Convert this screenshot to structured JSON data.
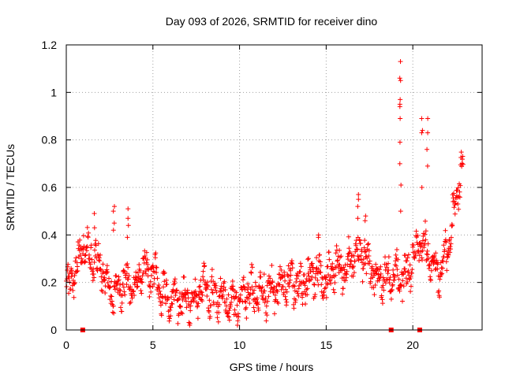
{
  "chart_data": {
    "type": "scatter",
    "title": "Day 093 of 2026, SRMTID for receiver dino",
    "xlabel": "GPS time / hours",
    "ylabel": "SRMTID / TECUs",
    "xlim": [
      0,
      24
    ],
    "ylim": [
      0,
      1.2
    ],
    "xticks": [
      0,
      5,
      10,
      15,
      20
    ],
    "xtick_labels": [
      "0",
      "5",
      "10",
      "15",
      "20"
    ],
    "yticks": [
      0,
      0.2,
      0.4,
      0.6,
      0.8,
      1.0,
      1.2
    ],
    "ytick_labels": [
      "0",
      "0.2",
      "0.4",
      "0.6",
      "0.8",
      "1",
      "1.2"
    ],
    "grid": true,
    "marker": "+",
    "color": "#ff0000",
    "baseline_markers": [
      {
        "x": 0.95,
        "y": 0
      },
      {
        "x": 18.75,
        "y": 0
      },
      {
        "x": 20.4,
        "y": 0
      }
    ],
    "trend": [
      [
        0.0,
        0.16
      ],
      [
        0.5,
        0.25
      ],
      [
        1.0,
        0.36
      ],
      [
        1.5,
        0.3
      ],
      [
        2.0,
        0.26
      ],
      [
        2.5,
        0.16
      ],
      [
        3.0,
        0.18
      ],
      [
        3.5,
        0.2
      ],
      [
        4.0,
        0.19
      ],
      [
        4.5,
        0.27
      ],
      [
        5.0,
        0.23
      ],
      [
        5.5,
        0.17
      ],
      [
        6.0,
        0.14
      ],
      [
        6.5,
        0.13
      ],
      [
        7.0,
        0.12
      ],
      [
        7.5,
        0.15
      ],
      [
        8.0,
        0.18
      ],
      [
        8.5,
        0.14
      ],
      [
        9.0,
        0.15
      ],
      [
        9.5,
        0.11
      ],
      [
        10.0,
        0.12
      ],
      [
        10.5,
        0.16
      ],
      [
        11.0,
        0.16
      ],
      [
        11.5,
        0.16
      ],
      [
        12.0,
        0.17
      ],
      [
        12.5,
        0.19
      ],
      [
        13.0,
        0.2
      ],
      [
        13.5,
        0.19
      ],
      [
        14.0,
        0.21
      ],
      [
        14.5,
        0.24
      ],
      [
        15.0,
        0.2
      ],
      [
        15.5,
        0.26
      ],
      [
        16.0,
        0.26
      ],
      [
        16.5,
        0.3
      ],
      [
        17.0,
        0.34
      ],
      [
        17.5,
        0.26
      ],
      [
        18.0,
        0.21
      ],
      [
        18.5,
        0.22
      ],
      [
        19.0,
        0.25
      ],
      [
        19.5,
        0.22
      ],
      [
        20.0,
        0.3
      ],
      [
        20.5,
        0.38
      ],
      [
        21.0,
        0.3
      ],
      [
        21.5,
        0.24
      ],
      [
        22.0,
        0.34
      ],
      [
        22.5,
        0.55
      ],
      [
        22.9,
        0.72
      ]
    ],
    "spikes": [
      {
        "x": 19.28,
        "values": [
          1.13,
          1.06,
          1.05,
          0.97,
          0.95,
          0.94,
          0.89,
          0.79,
          0.7,
          0.61,
          0.5
        ]
      },
      {
        "x": 20.55,
        "values": [
          0.89,
          0.84,
          0.83,
          0.6
        ]
      },
      {
        "x": 20.85,
        "values": [
          0.89,
          0.83,
          0.76,
          0.69
        ]
      },
      {
        "x": 2.75,
        "values": [
          0.52,
          0.5,
          0.45,
          0.42
        ]
      },
      {
        "x": 3.55,
        "values": [
          0.51,
          0.47,
          0.44,
          0.39
        ]
      },
      {
        "x": 16.85,
        "values": [
          0.57,
          0.55,
          0.52,
          0.47
        ]
      },
      {
        "x": 1.6,
        "values": [
          0.49,
          0.43
        ]
      },
      {
        "x": 14.55,
        "values": [
          0.4,
          0.39
        ]
      },
      {
        "x": 17.25,
        "values": [
          0.48,
          0.46
        ]
      }
    ],
    "spread": 0.055,
    "point_step": 0.02
  }
}
